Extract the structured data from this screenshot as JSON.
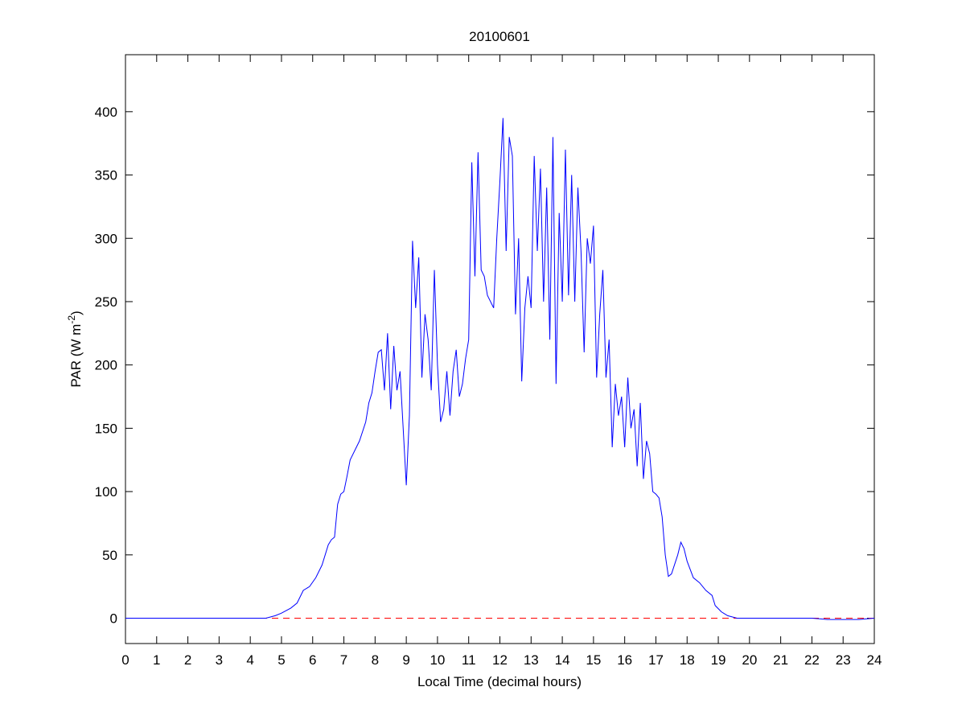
{
  "chart_data": {
    "type": "line",
    "title": "20100601",
    "x_label": "Local Time (decimal hours)",
    "y_label": [
      "PAR (W m",
      "-2",
      ")"
    ],
    "xlim": [
      0,
      24
    ],
    "ylim": [
      -20,
      445
    ],
    "xticks": [
      0,
      1,
      2,
      3,
      4,
      5,
      6,
      7,
      8,
      9,
      10,
      11,
      12,
      13,
      14,
      15,
      16,
      17,
      18,
      19,
      20,
      21,
      22,
      23,
      24
    ],
    "yticks": [
      0,
      50,
      100,
      150,
      200,
      250,
      300,
      350,
      400
    ],
    "reference_line": {
      "value": 0,
      "color": "#ff0000",
      "dash": "8,6"
    },
    "series": [
      {
        "color": "#0000ff",
        "x": [
          0,
          4.5,
          4.8,
          5.0,
          5.3,
          5.5,
          5.7,
          5.9,
          6.1,
          6.3,
          6.5,
          6.6,
          6.7,
          6.8,
          6.9,
          7.0,
          7.1,
          7.2,
          7.4,
          7.5,
          7.7,
          7.8,
          7.9,
          8.0,
          8.1,
          8.2,
          8.3,
          8.4,
          8.5,
          8.6,
          8.7,
          8.8,
          8.9,
          9.0,
          9.1,
          9.2,
          9.3,
          9.4,
          9.5,
          9.6,
          9.7,
          9.8,
          9.9,
          10.0,
          10.1,
          10.2,
          10.3,
          10.4,
          10.5,
          10.6,
          10.7,
          10.8,
          10.9,
          11.0,
          11.1,
          11.2,
          11.3,
          11.4,
          11.5,
          11.6,
          11.8,
          11.9,
          12.0,
          12.1,
          12.2,
          12.3,
          12.4,
          12.5,
          12.6,
          12.7,
          12.8,
          12.9,
          13.0,
          13.1,
          13.2,
          13.3,
          13.4,
          13.5,
          13.6,
          13.7,
          13.8,
          13.9,
          14.0,
          14.1,
          14.2,
          14.3,
          14.4,
          14.5,
          14.6,
          14.7,
          14.8,
          14.9,
          15.0,
          15.1,
          15.2,
          15.3,
          15.4,
          15.5,
          15.6,
          15.7,
          15.8,
          15.9,
          16.0,
          16.1,
          16.2,
          16.3,
          16.4,
          16.5,
          16.6,
          16.7,
          16.8,
          16.9,
          17.0,
          17.1,
          17.2,
          17.3,
          17.4,
          17.5,
          17.7,
          17.8,
          17.9,
          18.0,
          18.2,
          18.4,
          18.6,
          18.8,
          18.9,
          19.1,
          19.3,
          19.6,
          22.0,
          22.5,
          23.0,
          23.5,
          24.0
        ],
        "values": [
          0,
          0,
          2,
          4,
          8,
          12,
          22,
          25,
          32,
          42,
          58,
          62,
          64,
          90,
          98,
          100,
          112,
          125,
          135,
          140,
          155,
          170,
          178,
          195,
          210,
          212,
          180,
          225,
          165,
          215,
          180,
          195,
          150,
          105,
          160,
          298,
          245,
          285,
          190,
          240,
          220,
          180,
          275,
          200,
          155,
          165,
          195,
          160,
          195,
          212,
          175,
          185,
          205,
          220,
          360,
          270,
          368,
          275,
          270,
          255,
          245,
          300,
          345,
          395,
          290,
          380,
          365,
          240,
          300,
          187,
          245,
          270,
          245,
          365,
          290,
          355,
          250,
          340,
          220,
          380,
          185,
          320,
          250,
          370,
          255,
          350,
          250,
          340,
          290,
          210,
          300,
          280,
          310,
          190,
          240,
          275,
          190,
          220,
          135,
          185,
          160,
          175,
          135,
          190,
          150,
          165,
          120,
          170,
          110,
          140,
          130,
          100,
          98,
          95,
          80,
          50,
          33,
          35,
          50,
          60,
          55,
          45,
          32,
          28,
          22,
          18,
          10,
          5,
          2,
          0,
          0,
          -1,
          -1,
          -1,
          0
        ]
      }
    ]
  }
}
